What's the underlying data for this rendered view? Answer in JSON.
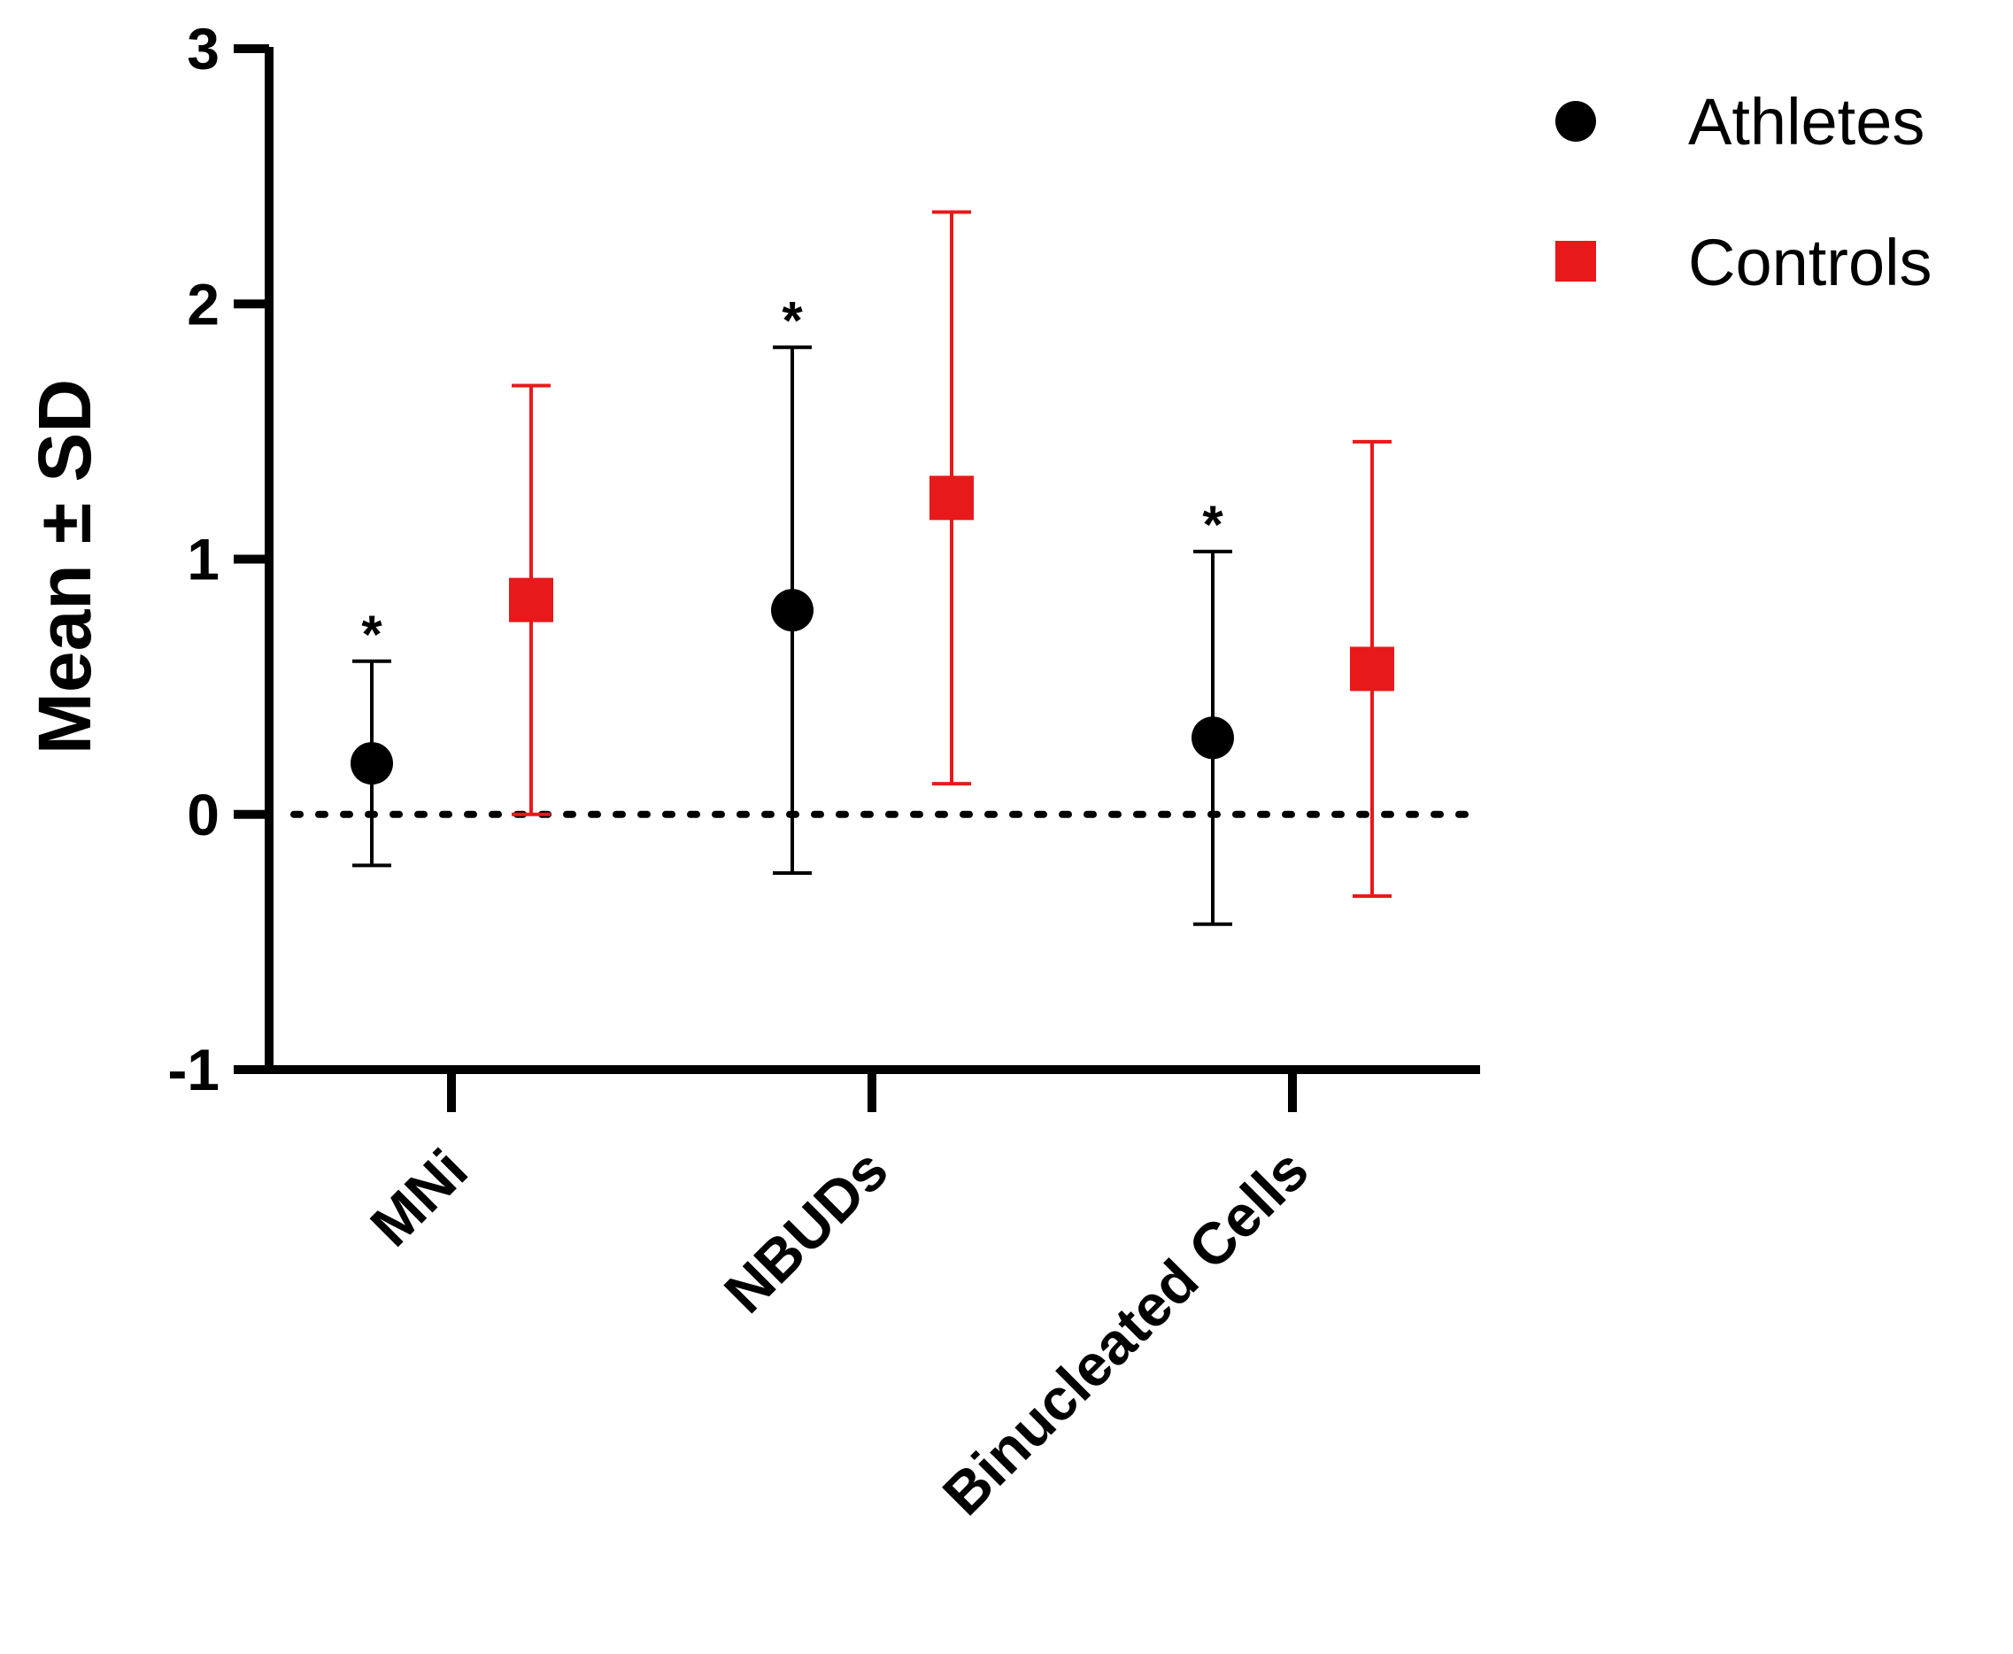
{
  "chart_data": {
    "type": "scatter",
    "subtype": "mean-sd-error-bars",
    "title": "",
    "xlabel": "",
    "ylabel": "Mean ± SD",
    "ylim": [
      -1,
      3
    ],
    "yticks": [
      -1,
      0,
      1,
      2,
      3
    ],
    "ytick_labels": [
      "-1",
      "0",
      "1",
      "2",
      "3"
    ],
    "reference_line": {
      "y": 0,
      "style": "dotted"
    },
    "categories": [
      "MNi",
      "NBUDs",
      "Binucleated Cells"
    ],
    "series": [
      {
        "name": "Athletes",
        "marker": "circle",
        "color": "#000000",
        "values": [
          0.2,
          0.8,
          0.3
        ],
        "sd": [
          0.4,
          1.03,
          0.73
        ],
        "annotations": [
          "*",
          "*",
          "*"
        ]
      },
      {
        "name": "Controls",
        "marker": "square",
        "color": "#e8191a",
        "values": [
          0.84,
          1.24,
          0.57
        ],
        "sd": [
          0.84,
          1.12,
          0.89
        ],
        "annotations": [
          "",
          "",
          ""
        ]
      }
    ],
    "legend_position": "top-right",
    "grid": false
  }
}
